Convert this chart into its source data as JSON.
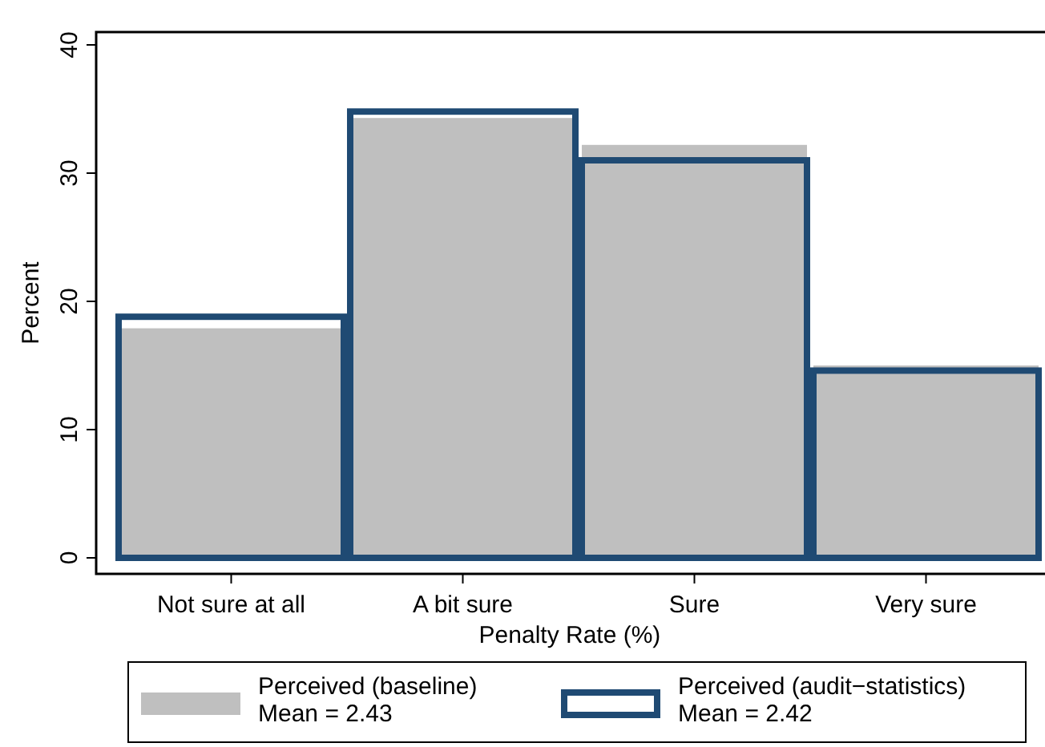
{
  "chart_data": {
    "type": "bar",
    "xlabel": "Penalty Rate (%)",
    "ylabel": "Percent",
    "categories": [
      "Not sure at all",
      "A bit sure",
      "Sure",
      "Very sure"
    ],
    "series": [
      {
        "name": "Perceived (baseline)\nMean = 2.43",
        "color": "#bfbfbf",
        "values": [
          17.9,
          34.3,
          32.2,
          15.0
        ]
      },
      {
        "name": "Perceived (audit−statistics)\nMean = 2.42",
        "color": "#1f4a73",
        "values": [
          18.8,
          34.8,
          31.0,
          14.6
        ]
      }
    ],
    "ylim": [
      0,
      41
    ],
    "yticks": [
      0,
      10,
      20,
      30,
      40
    ],
    "grid": false,
    "legend": "bottom"
  }
}
